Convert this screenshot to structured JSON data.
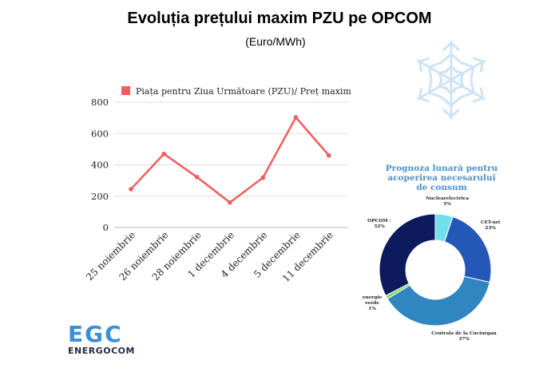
{
  "title": "Evoluția prețului maxim PZU pe OPCOM",
  "subtitle": "(Euro/MWh)",
  "chart_data": [
    {
      "type": "line",
      "series_name": "Piața pentru Ziua Următoare (PZU)/ Preț maxim",
      "series_color": "#f25c5c",
      "categories": [
        "25 noiembrie",
        "26 noiembrie",
        "28 noiembrie",
        "1 decembrie",
        "4 decembrie",
        "5 decembrie",
        "11 decembrie"
      ],
      "values": [
        245,
        470,
        322,
        160,
        318,
        703,
        460
      ],
      "yticks": [
        0,
        200,
        400,
        600,
        800
      ],
      "ylim": [
        0,
        800
      ],
      "grid": true,
      "legend": "top"
    },
    {
      "type": "pie",
      "title": "Prognoza lunară pentru acoperirea necesarului de consum",
      "slices": [
        {
          "label": "Nuclearelectrica",
          "value": 5,
          "pct": "5%",
          "color": "#6fe0ea"
        },
        {
          "label": "CET-uri",
          "value": 23,
          "pct": "23%",
          "color": "#2457b8"
        },
        {
          "label": "Centrala de la Cuciurgan",
          "value": 37,
          "pct": "37%",
          "color": "#2f86c0"
        },
        {
          "label": "energie verde",
          "value": 1,
          "pct": "1%",
          "color": "#7ed957"
        },
        {
          "label": "OPCOM",
          "value": 32,
          "pct": "32%",
          "color": "#0d1b5e"
        }
      ]
    }
  ],
  "logo": {
    "big": "EGC",
    "small": "ENERGOCOM"
  },
  "colors": {
    "snowflake": "#cfe3f3",
    "grid": "#dddddd"
  }
}
